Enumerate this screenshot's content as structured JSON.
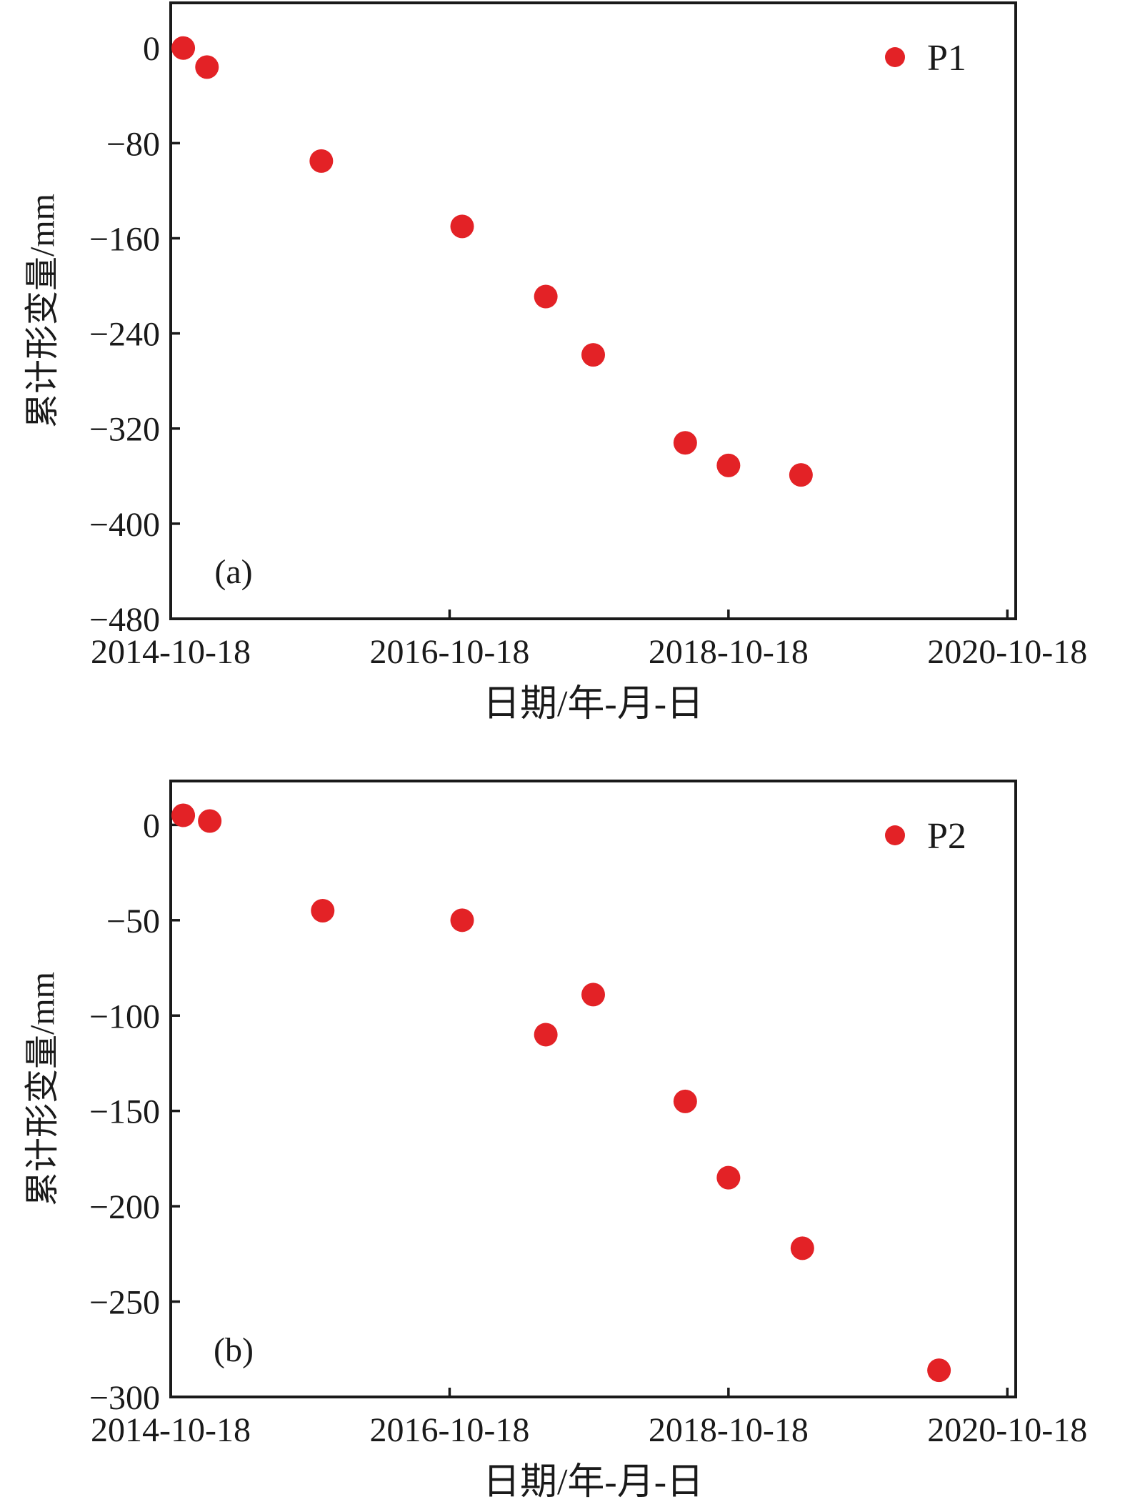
{
  "figure": {
    "background": "#ffffff",
    "axis_color": "#1a1a1a",
    "text_color": "#1a1a1a",
    "point_color": "#e32226"
  },
  "chart_data": [
    {
      "type": "scatter",
      "panel_label": "(a)",
      "legend": {
        "label": "P1",
        "marker": "red-dot",
        "position": "upper-right"
      },
      "xlabel": "日期/年-月-日",
      "ylabel": "累计形变量/mm",
      "grid": false,
      "x_tick_labels": [
        "2014-10-18",
        "2016-10-18",
        "2018-10-18",
        "2020-10-18"
      ],
      "x_tick_t_years": [
        0,
        2,
        4,
        6
      ],
      "x_axis_range_t_years": [
        0,
        6.06
      ],
      "y_tick_labels": [
        "0",
        "−80",
        "−160",
        "−240",
        "−320",
        "−400",
        "−480"
      ],
      "y_tick_values": [
        0,
        -80,
        -160,
        -240,
        -320,
        -400,
        -480
      ],
      "y_axis_range": [
        38,
        -480
      ],
      "points": [
        {
          "date_est": "2014-11-20",
          "t": 0.09,
          "value": 0
        },
        {
          "date_est": "2015-01-22",
          "t": 0.26,
          "value": -16
        },
        {
          "date_est": "2015-11-16",
          "t": 1.08,
          "value": -95
        },
        {
          "date_est": "2016-11-20",
          "t": 2.09,
          "value": -150
        },
        {
          "date_est": "2017-06-27",
          "t": 2.69,
          "value": -209
        },
        {
          "date_est": "2017-10-29",
          "t": 3.03,
          "value": -258
        },
        {
          "date_est": "2018-06-26",
          "t": 3.69,
          "value": -332
        },
        {
          "date_est": "2018-10-18",
          "t": 4.0,
          "value": -351
        },
        {
          "date_est": "2019-04-29",
          "t": 4.52,
          "value": -359
        }
      ]
    },
    {
      "type": "scatter",
      "panel_label": "(b)",
      "legend": {
        "label": "P2",
        "marker": "red-dot",
        "position": "upper-right"
      },
      "xlabel": "日期/年-月-日",
      "ylabel": "累计形变量/mm",
      "grid": false,
      "x_tick_labels": [
        "2014-10-18",
        "2016-10-18",
        "2018-10-18",
        "2020-10-18"
      ],
      "x_tick_t_years": [
        0,
        2,
        4,
        6
      ],
      "x_axis_range_t_years": [
        0,
        6.06
      ],
      "y_tick_labels": [
        "0",
        "−50",
        "−100",
        "−150",
        "−200",
        "−250",
        "−300"
      ],
      "y_tick_values": [
        0,
        -50,
        -100,
        -150,
        -200,
        -250,
        -300
      ],
      "y_axis_range": [
        23,
        -300
      ],
      "points": [
        {
          "date_est": "2014-11-20",
          "t": 0.09,
          "value": 5
        },
        {
          "date_est": "2015-01-22",
          "t": 0.28,
          "value": 2
        },
        {
          "date_est": "2015-11-16",
          "t": 1.09,
          "value": -45
        },
        {
          "date_est": "2016-11-20",
          "t": 2.09,
          "value": -50
        },
        {
          "date_est": "2017-06-27",
          "t": 2.69,
          "value": -110
        },
        {
          "date_est": "2017-10-29",
          "t": 3.03,
          "value": -89
        },
        {
          "date_est": "2018-06-26",
          "t": 3.69,
          "value": -145
        },
        {
          "date_est": "2018-10-18",
          "t": 4.0,
          "value": -185
        },
        {
          "date_est": "2019-04-29",
          "t": 4.53,
          "value": -222
        },
        {
          "date_est": "2020-04-21",
          "t": 5.51,
          "value": -286
        }
      ]
    }
  ]
}
